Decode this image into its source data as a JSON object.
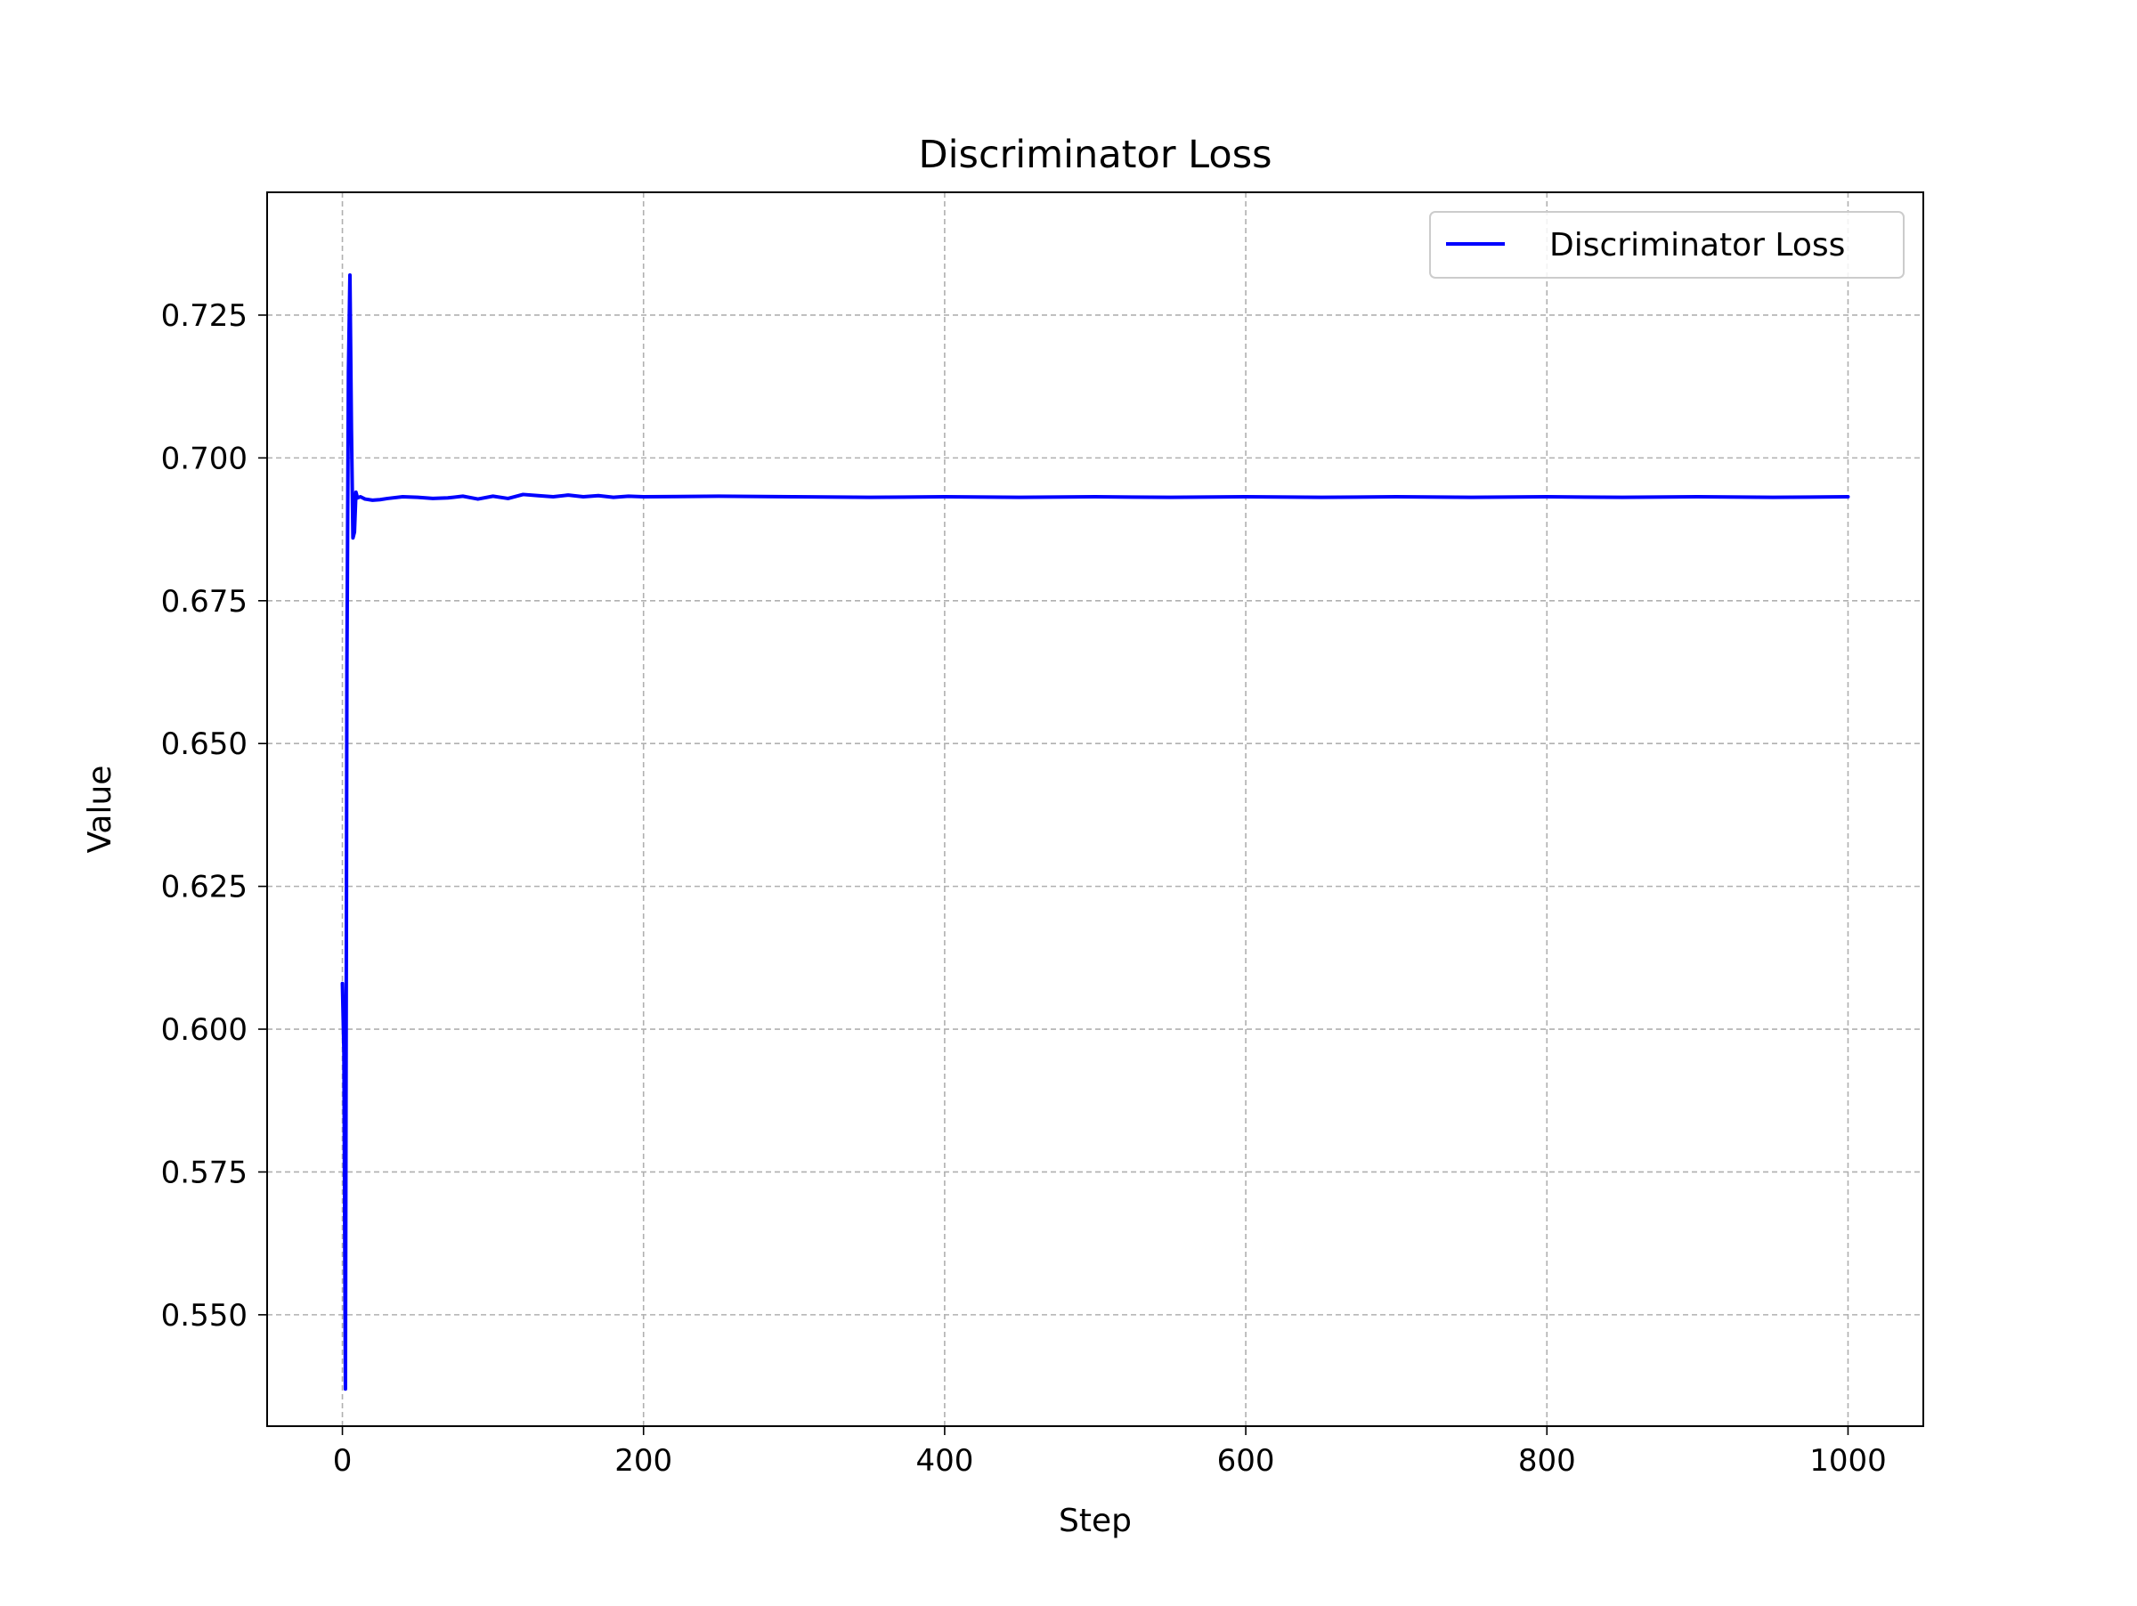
{
  "chart_data": {
    "type": "line",
    "title": "Discriminator Loss",
    "xlabel": "Step",
    "ylabel": "Value",
    "xlim": [
      -50,
      1050
    ],
    "ylim": [
      0.5305,
      0.7465
    ],
    "xticks": [
      0,
      200,
      400,
      600,
      800,
      1000
    ],
    "xtick_labels": [
      "0",
      "200",
      "400",
      "600",
      "800",
      "1000"
    ],
    "yticks": [
      0.55,
      0.575,
      0.6,
      0.625,
      0.65,
      0.675,
      0.7,
      0.725
    ],
    "ytick_labels": [
      "0.550",
      "0.575",
      "0.600",
      "0.625",
      "0.650",
      "0.675",
      "0.700",
      "0.725"
    ],
    "grid": true,
    "legend_position": "upper-right",
    "series": [
      {
        "name": "Discriminator Loss",
        "color": "#0000ff",
        "x": [
          0,
          1,
          2,
          3,
          4,
          5,
          6,
          7,
          8,
          9,
          10,
          12,
          15,
          20,
          25,
          30,
          40,
          50,
          60,
          70,
          80,
          90,
          100,
          110,
          120,
          130,
          140,
          150,
          160,
          170,
          180,
          190,
          200,
          250,
          300,
          350,
          400,
          450,
          500,
          550,
          600,
          650,
          700,
          750,
          800,
          850,
          900,
          950,
          1000
        ],
        "y": [
          0.608,
          0.596,
          0.537,
          0.664,
          0.715,
          0.732,
          0.705,
          0.686,
          0.687,
          0.694,
          0.693,
          0.6932,
          0.6928,
          0.6926,
          0.6927,
          0.6929,
          0.6932,
          0.6931,
          0.6929,
          0.693,
          0.6933,
          0.6928,
          0.6933,
          0.6929,
          0.6936,
          0.6934,
          0.6932,
          0.6935,
          0.6932,
          0.6934,
          0.6931,
          0.6933,
          0.6932,
          0.6933,
          0.6932,
          0.6931,
          0.6932,
          0.6931,
          0.6932,
          0.6931,
          0.6932,
          0.6931,
          0.6932,
          0.6931,
          0.6932,
          0.6931,
          0.6932,
          0.6931,
          0.6932
        ]
      }
    ]
  }
}
